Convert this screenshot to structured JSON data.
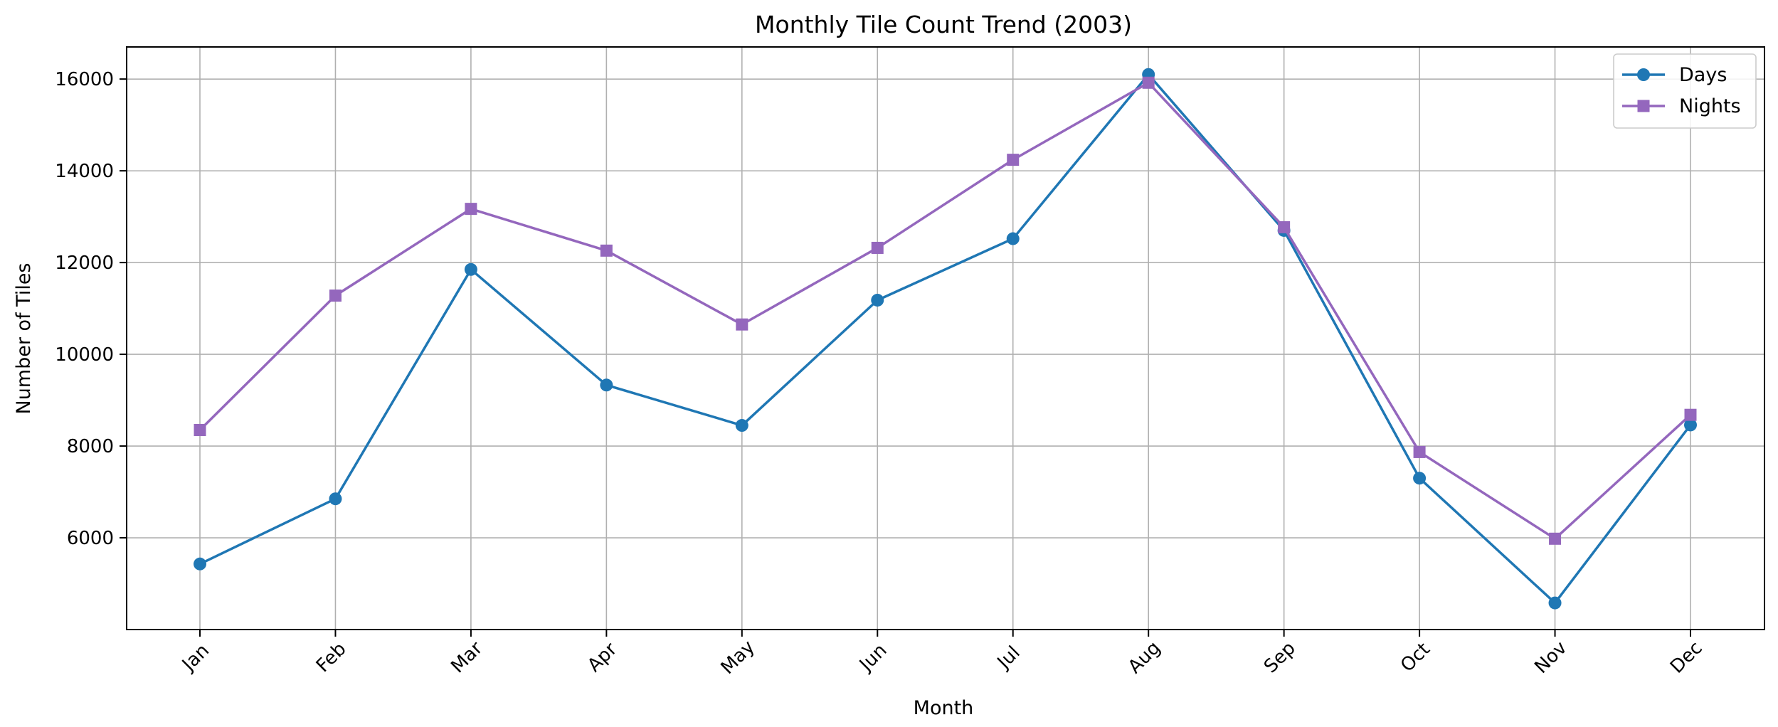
{
  "chart_data": {
    "type": "line",
    "title": "Monthly Tile Count Trend (2003)",
    "xlabel": "Month",
    "ylabel": "Number of Tiles",
    "categories": [
      "Jan",
      "Feb",
      "Mar",
      "Apr",
      "May",
      "Jun",
      "Jul",
      "Aug",
      "Sep",
      "Oct",
      "Nov",
      "Dec"
    ],
    "yticks": [
      6000,
      8000,
      10000,
      12000,
      14000,
      16000
    ],
    "ylim": [
      4000,
      16700
    ],
    "grid": true,
    "legend_position": "top-right",
    "series": [
      {
        "name": "Days",
        "color": "#1f77b4",
        "marker": "circle",
        "values": [
          5430,
          6850,
          11850,
          9330,
          8450,
          11180,
          12520,
          16100,
          12700,
          7300,
          4580,
          8460
        ]
      },
      {
        "name": "Nights",
        "color": "#9467bd",
        "marker": "square",
        "values": [
          8350,
          11280,
          13170,
          12260,
          10650,
          12320,
          14240,
          15920,
          12770,
          7870,
          5980,
          8680
        ]
      }
    ]
  }
}
